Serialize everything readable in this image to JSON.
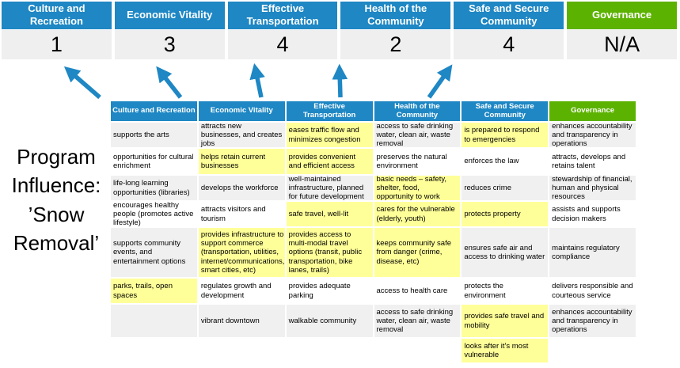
{
  "colors": {
    "accent_blue": "#1e87c4",
    "accent_green": "#5cb200",
    "highlight_yellow": "#ffff99",
    "row_gray": "#f0f0f0",
    "score_bg": "#efefef",
    "arrow_blue": "#1e87c4"
  },
  "title": {
    "full": "Program Influence: ’Snow Removal’",
    "lines": [
      "Program",
      "Influence:",
      "’Snow",
      "Removal’"
    ]
  },
  "priorities": [
    {
      "label": "Culture and Recreation",
      "score": "1",
      "theme": "blue"
    },
    {
      "label": "Economic Vitality",
      "score": "3",
      "theme": "blue"
    },
    {
      "label": "Effective Transportation",
      "score": "4",
      "theme": "blue"
    },
    {
      "label": "Health of the Community",
      "score": "2",
      "theme": "blue"
    },
    {
      "label": "Safe and Secure Community",
      "score": "4",
      "theme": "blue"
    },
    {
      "label": "Governance",
      "score": "N/A",
      "theme": "green"
    }
  ],
  "matrix": {
    "row_count": 8,
    "columns": [
      {
        "header": "Culture and Recreation",
        "theme": "blue",
        "cells": [
          {
            "text": "supports the arts",
            "hl": false
          },
          {
            "text": "opportunities for cultural enrichment",
            "hl": false
          },
          {
            "text": "life-long learning opportunities (libraries)",
            "hl": false
          },
          {
            "text": "encourages healthy people (promotes active lifestyle)",
            "hl": false
          },
          {
            "text": "supports community events, and entertainment options",
            "hl": false
          },
          {
            "text": "parks, trails, open spaces",
            "hl": true
          },
          {
            "text": "",
            "hl": false
          },
          {
            "text": "",
            "hl": false
          }
        ]
      },
      {
        "header": "Economic Vitality",
        "theme": "blue",
        "cells": [
          {
            "text": "attracts new businesses, and creates jobs",
            "hl": false
          },
          {
            "text": "helps retain current businesses",
            "hl": true
          },
          {
            "text": "develops the workforce",
            "hl": false
          },
          {
            "text": "attracts visitors and tourism",
            "hl": false
          },
          {
            "text": "provides infrastructure to support commerce (transportation, utilities, internet/communications, smart cities, etc)",
            "hl": true
          },
          {
            "text": "regulates growth and development",
            "hl": false
          },
          {
            "text": "vibrant downtown",
            "hl": false
          },
          {
            "text": "",
            "hl": false
          }
        ]
      },
      {
        "header": "Effective Transportation",
        "theme": "blue",
        "cells": [
          {
            "text": "eases traffic flow and minimizes congestion",
            "hl": true
          },
          {
            "text": "provides convenient and efficient access",
            "hl": true
          },
          {
            "text": "well-maintained infrastructure, planned for future development",
            "hl": false
          },
          {
            "text": "safe travel, well-lit",
            "hl": true
          },
          {
            "text": "provides access to multi-modal travel options (transit, public transportation, bike lanes, trails)",
            "hl": true
          },
          {
            "text": "provides adequate parking",
            "hl": false
          },
          {
            "text": "walkable community",
            "hl": false
          },
          {
            "text": "",
            "hl": false
          }
        ]
      },
      {
        "header": "Health of the Community",
        "theme": "blue",
        "cells": [
          {
            "text": "access to safe drinking water, clean air, waste removal",
            "hl": false
          },
          {
            "text": "preserves the natural environment",
            "hl": false
          },
          {
            "text": "basic needs – safety, shelter, food, opportunity to work",
            "hl": true
          },
          {
            "text": "cares for the vulnerable (elderly, youth)",
            "hl": true
          },
          {
            "text": "keeps community safe from danger (crime, disease, etc)",
            "hl": true
          },
          {
            "text": "access to health care",
            "hl": false
          },
          {
            "text": "access to safe drinking water, clean air, waste removal",
            "hl": false
          },
          {
            "text": "",
            "hl": false
          }
        ]
      },
      {
        "header": "Safe and Secure Community",
        "theme": "blue",
        "cells": [
          {
            "text": "is prepared to respond to emergencies",
            "hl": true
          },
          {
            "text": "enforces the law",
            "hl": false
          },
          {
            "text": "reduces crime",
            "hl": false
          },
          {
            "text": "protects property",
            "hl": true
          },
          {
            "text": "ensures safe air and access to drinking water",
            "hl": false
          },
          {
            "text": "protects the environment",
            "hl": false
          },
          {
            "text": "provides safe travel and mobility",
            "hl": true
          },
          {
            "text": "looks after it's most vulnerable",
            "hl": true
          }
        ]
      },
      {
        "header": "Governance",
        "theme": "green",
        "cells": [
          {
            "text": "enhances accountability and transparency in operations",
            "hl": false
          },
          {
            "text": "attracts, develops and retains talent",
            "hl": false
          },
          {
            "text": "stewardship of financial, human and physical resources",
            "hl": false
          },
          {
            "text": "assists and supports decision makers",
            "hl": false
          },
          {
            "text": "maintains regulatory compliance",
            "hl": false
          },
          {
            "text": "delivers responsible and courteous service",
            "hl": false
          },
          {
            "text": "enhances accountability and transparency in operations",
            "hl": false
          },
          {
            "text": "",
            "hl": false
          }
        ]
      }
    ]
  }
}
